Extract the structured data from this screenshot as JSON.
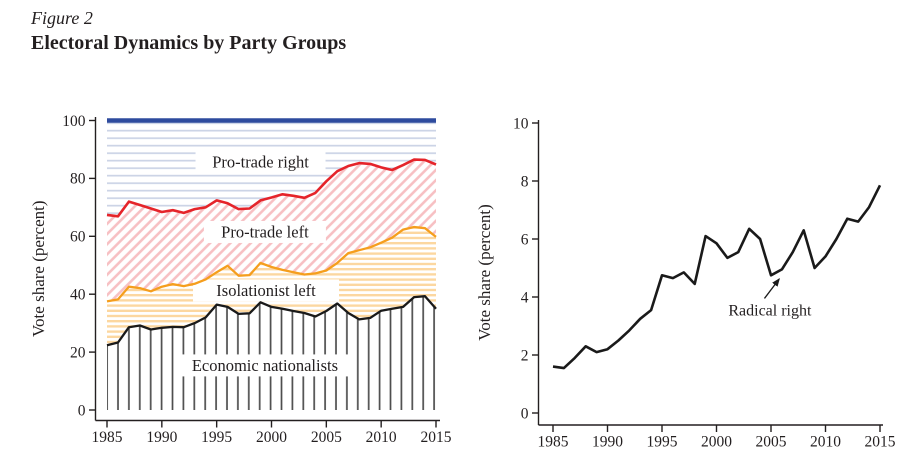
{
  "figure": {
    "label": "Figure 2",
    "title": "Electoral Dynamics by Party Groups"
  },
  "chart_data": [
    {
      "id": "party_groups",
      "type": "area",
      "subtype": "stacked-band-boundaries",
      "ylabel": "Vote share (percent)",
      "ylim": [
        0,
        100
      ],
      "yticks": [
        0,
        20,
        40,
        60,
        80,
        100
      ],
      "xticks": [
        1985,
        1990,
        1995,
        2000,
        2005,
        2010,
        2015
      ],
      "x": [
        1985,
        1986,
        1987,
        1988,
        1989,
        1990,
        1991,
        1992,
        1993,
        1994,
        1995,
        1996,
        1997,
        1998,
        1999,
        2000,
        2001,
        2002,
        2003,
        2004,
        2005,
        2006,
        2007,
        2008,
        2009,
        2010,
        2011,
        2012,
        2013,
        2014,
        2015
      ],
      "series": [
        {
          "name": "Economic nationalists (top boundary)",
          "line_color": "#1a1a1a",
          "fill_pattern": "vertical-gray-lines",
          "values": [
            22.4,
            23.3,
            28.6,
            29.2,
            27.8,
            28.4,
            28.7,
            28.6,
            30.0,
            32.0,
            36.4,
            35.6,
            33.2,
            33.4,
            37.2,
            35.6,
            35.0,
            34.2,
            33.5,
            32.3,
            34.2,
            36.8,
            33.5,
            31.3,
            31.8,
            34.3,
            35.0,
            35.6,
            39.0,
            39.3,
            35.0
          ]
        },
        {
          "name": "Isolationist left (top boundary)",
          "line_color": "#F59E1D",
          "fill_pattern": "horizontal-orange-stripes",
          "values": [
            37.5,
            38.2,
            42.6,
            42.1,
            41.0,
            42.6,
            43.5,
            42.8,
            43.6,
            45.1,
            47.6,
            49.8,
            46.4,
            46.6,
            50.8,
            49.4,
            48.4,
            47.6,
            46.8,
            47.2,
            48.2,
            50.8,
            54.2,
            55.2,
            56.2,
            57.8,
            59.5,
            62.3,
            63.2,
            62.8,
            59.8
          ]
        },
        {
          "name": "Pro-trade left (top boundary)",
          "line_color": "#E5242A",
          "fill_pattern": "diagonal-pink-stripes",
          "values": [
            67.4,
            66.9,
            72.0,
            70.8,
            69.6,
            68.4,
            69.0,
            68.1,
            69.4,
            70.0,
            72.4,
            71.4,
            69.4,
            69.6,
            72.4,
            73.4,
            74.5,
            74.0,
            73.3,
            75.0,
            79.0,
            82.5,
            84.3,
            85.3,
            85.0,
            83.8,
            82.9,
            84.6,
            86.5,
            86.4,
            84.8
          ]
        },
        {
          "name": "Pro-trade right (top boundary)",
          "line_color": "#2E4B9E",
          "fill_pattern": "horizontal-blue-stripes",
          "values": [
            100,
            100,
            100,
            100,
            100,
            100,
            100,
            100,
            100,
            100,
            100,
            100,
            100,
            100,
            100,
            100,
            100,
            100,
            100,
            100,
            100,
            100,
            100,
            100,
            100,
            100,
            100,
            100,
            100,
            100,
            100
          ]
        }
      ],
      "region_labels": [
        {
          "text": "Pro-trade right",
          "x": 1999.0,
          "y": 85.7
        },
        {
          "text": "Pro-trade left",
          "x": 1999.4,
          "y": 61.5
        },
        {
          "text": "Isolationist left",
          "x": 1999.5,
          "y": 41.3
        },
        {
          "text": "Economic nationalists",
          "x": 1999.4,
          "y": 15.4
        }
      ],
      "pattern_colors": {
        "horizontal-blue-stripes": "#c7d0e4",
        "diagonal-pink-stripes": "#f7c0c3",
        "horizontal-orange-stripes": "#fcd7a0",
        "vertical-gray-lines": "#4d4d4d"
      }
    },
    {
      "id": "radical_right",
      "type": "line",
      "ylabel": "Vote share (percent)",
      "ylim": [
        0,
        10
      ],
      "yticks": [
        0,
        2,
        4,
        6,
        8,
        10
      ],
      "xticks": [
        1985,
        1990,
        1995,
        2000,
        2005,
        2010,
        2015
      ],
      "x": [
        1985,
        1986,
        1987,
        1988,
        1989,
        1990,
        1991,
        1992,
        1993,
        1994,
        1995,
        1996,
        1997,
        1998,
        1999,
        2000,
        2001,
        2002,
        2003,
        2004,
        2005,
        2006,
        2007,
        2008,
        2009,
        2010,
        2011,
        2012,
        2013,
        2014,
        2015
      ],
      "series": [
        {
          "name": "Radical right",
          "line_color": "#1a1a1a",
          "values": [
            1.6,
            1.55,
            1.9,
            2.3,
            2.1,
            2.2,
            2.5,
            2.85,
            3.25,
            3.55,
            4.75,
            4.65,
            4.85,
            4.45,
            6.1,
            5.85,
            5.35,
            5.55,
            6.35,
            6.0,
            4.75,
            4.95,
            5.55,
            6.3,
            5.0,
            5.4,
            6.0,
            6.7,
            6.6,
            7.1,
            7.85
          ]
        }
      ],
      "annotation": {
        "text": "Radical right",
        "text_x": 2004.9,
        "text_y": 3.55,
        "arrow_from_x": 2004.4,
        "arrow_from_y": 3.95,
        "arrow_to_x": 2005.75,
        "arrow_to_y": 4.62
      }
    }
  ]
}
